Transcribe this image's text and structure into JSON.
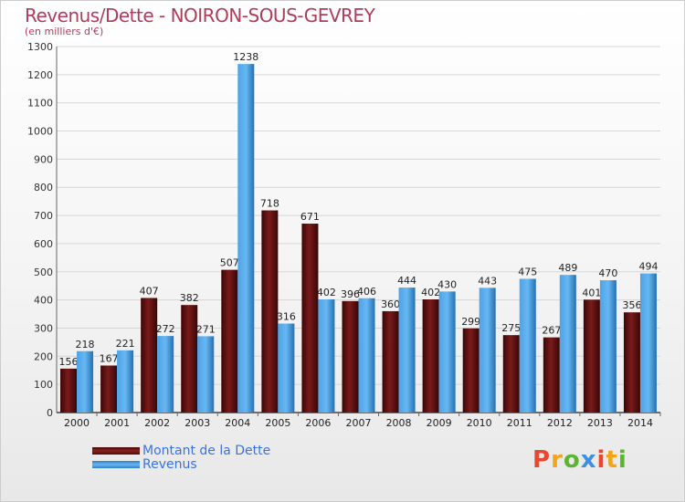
{
  "title": "Revenus/Dette - NOIRON-SOUS-GEVREY",
  "subtitle": "(en milliers d'€)",
  "legend": {
    "debt": "Montant de la Dette",
    "revenue": "Revenus"
  },
  "logo": {
    "text": "Proxiti",
    "letter_colors": [
      "#e8482e",
      "#f2a51a",
      "#5cb531",
      "#3f8fe0",
      "#e8482e",
      "#f2a51a",
      "#5cb531"
    ]
  },
  "colors": {
    "debt": "#7a1b1b",
    "debt_dark": "#3a0606",
    "revenue": "#4ea3e6",
    "revenue_dark": "#2470b3",
    "title": "#b03c5c",
    "legend_text": "#3a73e0"
  },
  "chart_data": {
    "type": "bar",
    "title": "Revenus/Dette - NOIRON-SOUS-GEVREY",
    "subtitle": "(en milliers d'€)",
    "categories": [
      "2000",
      "2001",
      "2002",
      "2003",
      "2004",
      "2005",
      "2006",
      "2007",
      "2008",
      "2009",
      "2010",
      "2011",
      "2012",
      "2013",
      "2014"
    ],
    "series": [
      {
        "name": "Montant de la Dette",
        "values": [
          156,
          167,
          407,
          382,
          507,
          718,
          671,
          396,
          360,
          402,
          299,
          275,
          267,
          401,
          356
        ]
      },
      {
        "name": "Revenus",
        "values": [
          218,
          221,
          272,
          271,
          1238,
          316,
          402,
          406,
          444,
          430,
          443,
          475,
          489,
          470,
          494
        ]
      }
    ],
    "ylim": [
      0,
      1300
    ],
    "yticks": [
      0,
      100,
      200,
      300,
      400,
      500,
      600,
      700,
      800,
      900,
      1000,
      1100,
      1200,
      1300
    ],
    "grid": true,
    "legend_position": "bottom-left"
  }
}
